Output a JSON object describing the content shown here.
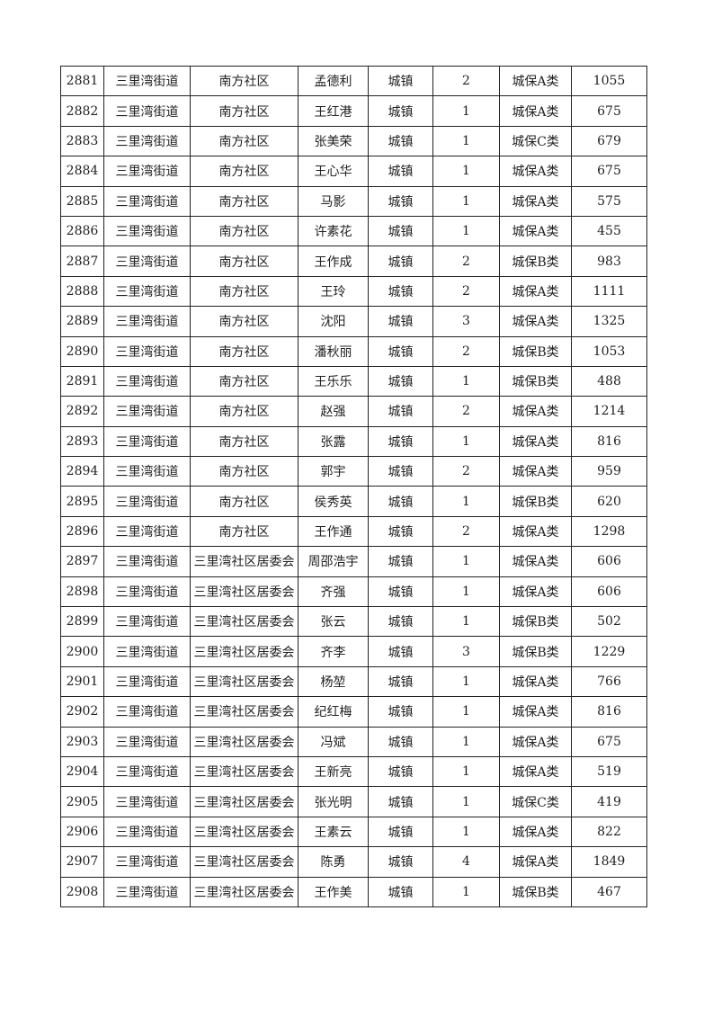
{
  "rows": [
    [
      "2881",
      "三里湾街道",
      "南方社区",
      "孟德利",
      "城镇",
      "2",
      "城保A类",
      "1055"
    ],
    [
      "2882",
      "三里湾街道",
      "南方社区",
      "王红港",
      "城镇",
      "1",
      "城保A类",
      "675"
    ],
    [
      "2883",
      "三里湾街道",
      "南方社区",
      "张美荣",
      "城镇",
      "1",
      "城保C类",
      "679"
    ],
    [
      "2884",
      "三里湾街道",
      "南方社区",
      "王心华",
      "城镇",
      "1",
      "城保A类",
      "675"
    ],
    [
      "2885",
      "三里湾街道",
      "南方社区",
      "马影",
      "城镇",
      "1",
      "城保A类",
      "575"
    ],
    [
      "2886",
      "三里湾街道",
      "南方社区",
      "许素花",
      "城镇",
      "1",
      "城保A类",
      "455"
    ],
    [
      "2887",
      "三里湾街道",
      "南方社区",
      "王作成",
      "城镇",
      "2",
      "城保B类",
      "983"
    ],
    [
      "2888",
      "三里湾街道",
      "南方社区",
      "王玲",
      "城镇",
      "2",
      "城保A类",
      "1111"
    ],
    [
      "2889",
      "三里湾街道",
      "南方社区",
      "沈阳",
      "城镇",
      "3",
      "城保A类",
      "1325"
    ],
    [
      "2890",
      "三里湾街道",
      "南方社区",
      "潘秋丽",
      "城镇",
      "2",
      "城保B类",
      "1053"
    ],
    [
      "2891",
      "三里湾街道",
      "南方社区",
      "王乐乐",
      "城镇",
      "1",
      "城保B类",
      "488"
    ],
    [
      "2892",
      "三里湾街道",
      "南方社区",
      "赵强",
      "城镇",
      "2",
      "城保A类",
      "1214"
    ],
    [
      "2893",
      "三里湾街道",
      "南方社区",
      "张露",
      "城镇",
      "1",
      "城保A类",
      "816"
    ],
    [
      "2894",
      "三里湾街道",
      "南方社区",
      "郭宇",
      "城镇",
      "2",
      "城保A类",
      "959"
    ],
    [
      "2895",
      "三里湾街道",
      "南方社区",
      "侯秀英",
      "城镇",
      "1",
      "城保B类",
      "620"
    ],
    [
      "2896",
      "三里湾街道",
      "南方社区",
      "王作通",
      "城镇",
      "2",
      "城保A类",
      "1298"
    ],
    [
      "2897",
      "三里湾街道",
      "三里湾社区居委会",
      "周邵浩宇",
      "城镇",
      "1",
      "城保A类",
      "606"
    ],
    [
      "2898",
      "三里湾街道",
      "三里湾社区居委会",
      "齐强",
      "城镇",
      "1",
      "城保A类",
      "606"
    ],
    [
      "2899",
      "三里湾街道",
      "三里湾社区居委会",
      "张云",
      "城镇",
      "1",
      "城保B类",
      "502"
    ],
    [
      "2900",
      "三里湾街道",
      "三里湾社区居委会",
      "齐李",
      "城镇",
      "3",
      "城保B类",
      "1229"
    ],
    [
      "2901",
      "三里湾街道",
      "三里湾社区居委会",
      "杨堃",
      "城镇",
      "1",
      "城保A类",
      "766"
    ],
    [
      "2902",
      "三里湾街道",
      "三里湾社区居委会",
      "纪红梅",
      "城镇",
      "1",
      "城保A类",
      "816"
    ],
    [
      "2903",
      "三里湾街道",
      "三里湾社区居委会",
      "冯斌",
      "城镇",
      "1",
      "城保A类",
      "675"
    ],
    [
      "2904",
      "三里湾街道",
      "三里湾社区居委会",
      "王新亮",
      "城镇",
      "1",
      "城保A类",
      "519"
    ],
    [
      "2905",
      "三里湾街道",
      "三里湾社区居委会",
      "张光明",
      "城镇",
      "1",
      "城保C类",
      "419"
    ],
    [
      "2906",
      "三里湾街道",
      "三里湾社区居委会",
      "王素云",
      "城镇",
      "1",
      "城保A类",
      "822"
    ],
    [
      "2907",
      "三里湾街道",
      "三里湾社区居委会",
      "陈勇",
      "城镇",
      "4",
      "城保A类",
      "1849"
    ],
    [
      "2908",
      "三里湾街道",
      "三里湾社区居委会",
      "王作美",
      "城镇",
      "1",
      "城保B类",
      "467"
    ]
  ]
}
